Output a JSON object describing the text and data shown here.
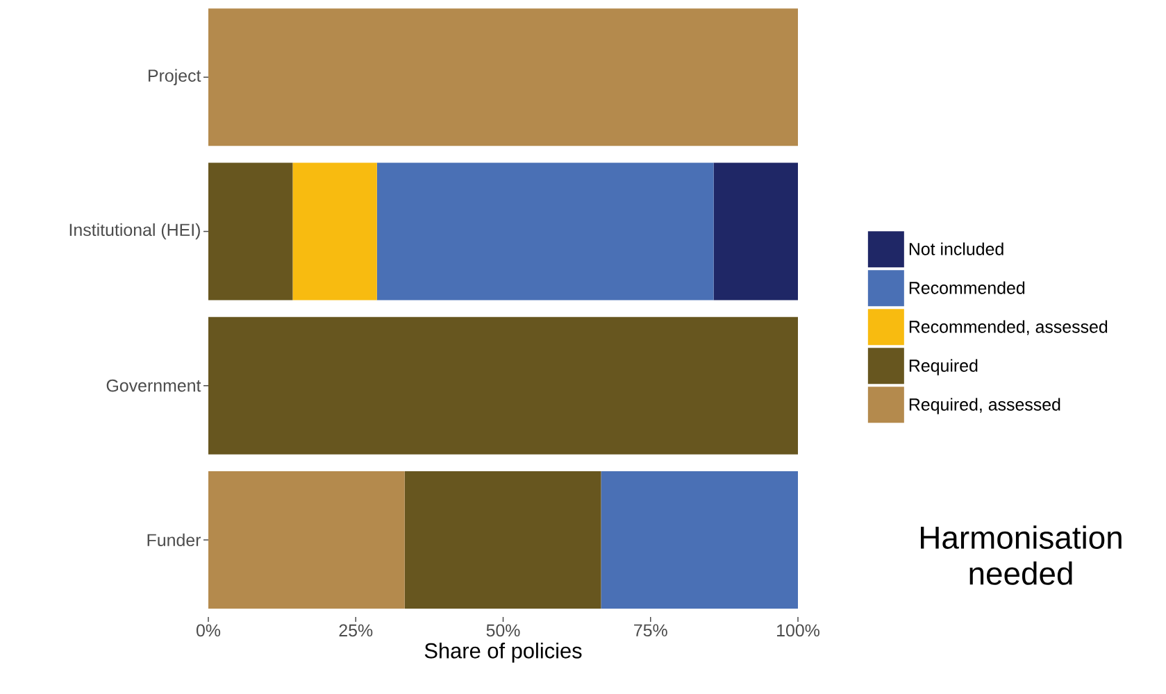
{
  "chart_data": {
    "type": "bar",
    "orientation": "horizontal",
    "stacked": true,
    "xlabel": "Share of policies",
    "categories": [
      "Project",
      "Institutional (HEI)",
      "Government",
      "Funder"
    ],
    "series": [
      {
        "name": "Required, assessed",
        "color": "#b48a4d",
        "values": [
          100,
          0,
          0,
          33.3
        ]
      },
      {
        "name": "Required",
        "color": "#67561f",
        "values": [
          0,
          14.3,
          100,
          33.3
        ]
      },
      {
        "name": "Recommended, assessed",
        "color": "#f8bb10",
        "values": [
          0,
          14.3,
          0,
          0
        ]
      },
      {
        "name": "Recommended",
        "color": "#4a70b5",
        "values": [
          0,
          57.1,
          0,
          33.4
        ]
      },
      {
        "name": "Not included",
        "color": "#1f2766",
        "values": [
          0,
          14.3,
          0,
          0
        ]
      }
    ],
    "xlim": [
      0,
      100
    ],
    "xticks": [
      {
        "value": 0,
        "label": "0%"
      },
      {
        "value": 25,
        "label": "25%"
      },
      {
        "value": 50,
        "label": "50%"
      },
      {
        "value": 75,
        "label": "75%"
      },
      {
        "value": 100,
        "label": "100%"
      }
    ],
    "legend": "right",
    "annotations": [
      "Harmonisation needed"
    ]
  }
}
